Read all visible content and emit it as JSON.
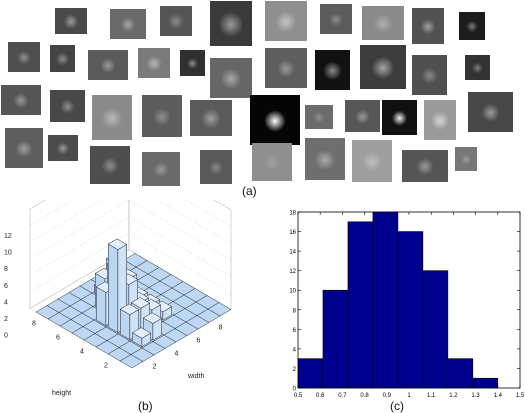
{
  "captions": {
    "a": "(a)",
    "b": "(b)",
    "c": "(c)"
  },
  "thumbnails": [
    {
      "bg": "#4a4a4a",
      "spot": "#9a9a9a",
      "s": 0.35
    },
    {
      "bg": "#6a6a6a",
      "spot": "#a5a5a5",
      "s": 0.3
    },
    {
      "bg": "#555555",
      "spot": "#8a8a8a",
      "s": 0.35
    },
    {
      "bg": "#3a3a3a",
      "spot": "#9b9b9b",
      "s": 0.4
    },
    {
      "bg": "#8f8f8f",
      "spot": "#c5c5c5",
      "s": 0.35
    },
    {
      "bg": "#5c5c5c",
      "spot": "#8f8f8f",
      "s": 0.3
    },
    {
      "bg": "#8a8a8a",
      "spot": "#b0b0b0",
      "s": 0.35
    },
    {
      "bg": "#525252",
      "spot": "#a0a0a0",
      "s": 0.3
    },
    {
      "bg": "#1c1c1c",
      "spot": "#7a7a7a",
      "s": 0.3
    },
    {
      "bg": "#4f4f4f",
      "spot": "#909090",
      "s": 0.3
    },
    {
      "bg": "#444444",
      "spot": "#8c8c8c",
      "s": 0.35
    },
    {
      "bg": "#5a5a5a",
      "spot": "#9a9a9a",
      "s": 0.3
    },
    {
      "bg": "#7a7a7a",
      "spot": "#b5b5b5",
      "s": 0.35
    },
    {
      "bg": "#303030",
      "spot": "#8a8a8a",
      "s": 0.3
    },
    {
      "bg": "#666666",
      "spot": "#a8a8a8",
      "s": 0.35
    },
    {
      "bg": "#5e5e5e",
      "spot": "#9a9a9a",
      "s": 0.3
    },
    {
      "bg": "#111111",
      "spot": "#8a8a8a",
      "s": 0.35
    },
    {
      "bg": "#3c3c3c",
      "spot": "#a5a5a5",
      "s": 0.35
    },
    {
      "bg": "#505050",
      "spot": "#8a8a8a",
      "s": 0.3
    },
    {
      "bg": "#333333",
      "spot": "#7f7f7f",
      "s": 0.3
    },
    {
      "bg": "#555555",
      "spot": "#999999",
      "s": 0.3
    },
    {
      "bg": "#484848",
      "spot": "#8f8f8f",
      "s": 0.3
    },
    {
      "bg": "#8a8a8a",
      "spot": "#b8b8b8",
      "s": 0.35
    },
    {
      "bg": "#5c5c5c",
      "spot": "#8f8f8f",
      "s": 0.3
    },
    {
      "bg": "#5a5a5a",
      "spot": "#9f9f9f",
      "s": 0.35
    },
    {
      "bg": "#050505",
      "spot": "#ffffff",
      "s": 0.3
    },
    {
      "bg": "#6c6c6c",
      "spot": "#8f8f8f",
      "s": 0.3
    },
    {
      "bg": "#575757",
      "spot": "#9a9a9a",
      "s": 0.3
    },
    {
      "bg": "#111111",
      "spot": "#f0f0f0",
      "s": 0.3
    },
    {
      "bg": "#9a9a9a",
      "spot": "#d5d5d5",
      "s": 0.35
    },
    {
      "bg": "#474747",
      "spot": "#9a9a9a",
      "s": 0.3
    },
    {
      "bg": "#5e5e5e",
      "spot": "#a0a0a0",
      "s": 0.3
    },
    {
      "bg": "#4c4c4c",
      "spot": "#9a9a9a",
      "s": 0.3
    },
    {
      "bg": "#4e4e4e",
      "spot": "#8f8f8f",
      "s": 0.3
    },
    {
      "bg": "#6a6a6a",
      "spot": "#9a9a9a",
      "s": 0.3
    },
    {
      "bg": "#595959",
      "spot": "#8a8a8a",
      "s": 0.3
    },
    {
      "bg": "#8f8f8f",
      "spot": "#a0a0a0",
      "s": 0.3
    },
    {
      "bg": "#6e6e6e",
      "spot": "#a8a8a8",
      "s": 0.35
    },
    {
      "bg": "#9e9e9e",
      "spot": "#bdbdbd",
      "s": 0.35
    },
    {
      "bg": "#555555",
      "spot": "#9a9a9a",
      "s": 0.3
    },
    {
      "bg": "#777777",
      "spot": "#9f9f9f",
      "s": 0.3
    }
  ],
  "chart_data": [
    {
      "type": "bar3d",
      "xlabel": "height",
      "ylabel": "width",
      "zticks": [
        0,
        2,
        4,
        6,
        8,
        10,
        12
      ],
      "height_ticks": [
        2,
        4,
        6,
        8
      ],
      "width_ticks": [
        2,
        4,
        6,
        8
      ],
      "bars": [
        {
          "h": 3,
          "w": 3,
          "v": 3
        },
        {
          "h": 4,
          "w": 3,
          "v": 10
        },
        {
          "h": 4,
          "w": 4,
          "v": 5
        },
        {
          "h": 5,
          "w": 4,
          "v": 6
        },
        {
          "h": 5,
          "w": 5,
          "v": 4
        },
        {
          "h": 6,
          "w": 4,
          "v": 4
        },
        {
          "h": 6,
          "w": 5,
          "v": 5
        },
        {
          "h": 3,
          "w": 4,
          "v": 3
        },
        {
          "h": 2,
          "w": 4,
          "v": 2
        },
        {
          "h": 2,
          "w": 3,
          "v": 1
        },
        {
          "h": 4,
          "w": 5,
          "v": 2
        },
        {
          "h": 5,
          "w": 3,
          "v": 4
        },
        {
          "h": 3,
          "w": 5,
          "v": 2
        },
        {
          "h": 6,
          "w": 6,
          "v": 2
        },
        {
          "h": 3,
          "w": 6,
          "v": 1
        },
        {
          "h": 7,
          "w": 5,
          "v": 1
        },
        {
          "h": 4,
          "w": 6,
          "v": 1
        },
        {
          "h": 5,
          "w": 6,
          "v": 1
        }
      ]
    },
    {
      "type": "bar",
      "xlim": [
        0.5,
        1.5
      ],
      "ylim": [
        0,
        18
      ],
      "xticks": [
        "0.5",
        "0.6",
        "0.7",
        "0.8",
        "0.9",
        "1",
        "1.1",
        "1.2",
        "1.3",
        "1.4",
        "1.5"
      ],
      "yticks": [
        "0",
        "2",
        "4",
        "6",
        "8",
        "10",
        "12",
        "14",
        "16",
        "18"
      ],
      "bins": [
        {
          "from": 0.5,
          "to": 0.6125,
          "v": 3
        },
        {
          "from": 0.6125,
          "to": 0.725,
          "v": 10
        },
        {
          "from": 0.725,
          "to": 0.8375,
          "v": 17
        },
        {
          "from": 0.8375,
          "to": 0.95,
          "v": 18
        },
        {
          "from": 0.95,
          "to": 1.0625,
          "v": 16
        },
        {
          "from": 1.0625,
          "to": 1.175,
          "v": 12
        },
        {
          "from": 1.175,
          "to": 1.2875,
          "v": 3
        },
        {
          "from": 1.2875,
          "to": 1.4,
          "v": 1
        }
      ],
      "bar_color": "#00008f"
    }
  ]
}
